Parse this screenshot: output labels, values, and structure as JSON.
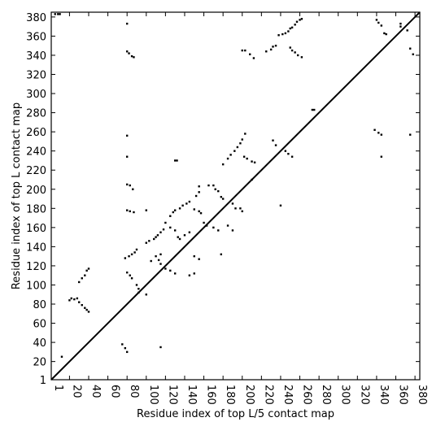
{
  "chart_data": {
    "type": "scatter",
    "xlabel": "Residue index of top L/5 contact map",
    "ylabel": "Residue index of top L contact map",
    "xlim": [
      1,
      385
    ],
    "ylim": [
      1,
      385
    ],
    "xticks": [
      1,
      20,
      40,
      60,
      80,
      100,
      120,
      140,
      160,
      180,
      200,
      220,
      240,
      260,
      280,
      300,
      320,
      340,
      360,
      380
    ],
    "yticks": [
      1,
      20,
      40,
      60,
      80,
      100,
      120,
      140,
      160,
      180,
      200,
      220,
      240,
      260,
      280,
      300,
      320,
      340,
      360,
      380
    ],
    "color": "#000000",
    "x": [
      5,
      8,
      10,
      80,
      80,
      82,
      85,
      87,
      200,
      203,
      208,
      212,
      225,
      230,
      232,
      235,
      238,
      242,
      245,
      248,
      250,
      252,
      255,
      257,
      260,
      262,
      250,
      252,
      255,
      258,
      262,
      340,
      342,
      345,
      348,
      350,
      365,
      365,
      372,
      375,
      378,
      273,
      275,
      180,
      185,
      188,
      192,
      195,
      198,
      200,
      203,
      202,
      205,
      210,
      213,
      232,
      235,
      80,
      80,
      80,
      83,
      86,
      80,
      83,
      87,
      100,
      130,
      132,
      120,
      125,
      128,
      130,
      135,
      138,
      142,
      145,
      152,
      155,
      155,
      165,
      170,
      172,
      175,
      178,
      180,
      150,
      155,
      157,
      198,
      200,
      108,
      110,
      112,
      115,
      118,
      20,
      22,
      28,
      33,
      36,
      38,
      40,
      30,
      78,
      82,
      85,
      88,
      90,
      100,
      103,
      12,
      75,
      78,
      80,
      115,
      90,
      92,
      92,
      100,
      80,
      83,
      85,
      25,
      30,
      33,
      36,
      38,
      40,
      105,
      110,
      113,
      115,
      120,
      125,
      130,
      115,
      125,
      130,
      133,
      135,
      145,
      150,
      150,
      155,
      140,
      145,
      160,
      163,
      170,
      175,
      178,
      190,
      193,
      190,
      245,
      248,
      252,
      240,
      338,
      342,
      345,
      345,
      375,
      210,
      185
    ],
    "y": [
      383,
      383,
      383,
      373,
      344,
      342,
      339,
      338,
      345,
      345,
      341,
      337,
      344,
      346,
      349,
      350,
      361,
      362,
      363,
      365,
      368,
      369,
      372,
      375,
      377,
      378,
      348,
      345,
      343,
      340,
      338,
      377,
      374,
      371,
      363,
      362,
      373,
      370,
      366,
      347,
      341,
      283,
      283,
      226,
      232,
      236,
      240,
      244,
      248,
      252,
      258,
      234,
      232,
      229,
      228,
      251,
      246,
      256,
      234,
      205,
      204,
      200,
      178,
      177,
      176,
      178,
      230,
      230,
      165,
      172,
      176,
      178,
      180,
      183,
      185,
      187,
      193,
      197,
      203,
      204,
      204,
      200,
      198,
      192,
      190,
      179,
      177,
      175,
      180,
      177,
      148,
      150,
      152,
      155,
      158,
      84,
      86,
      86,
      107,
      110,
      115,
      117,
      103,
      128,
      130,
      132,
      134,
      137,
      144,
      146,
      25,
      38,
      34,
      30,
      35,
      100,
      96,
      92,
      90,
      113,
      110,
      107,
      85,
      82,
      79,
      76,
      74,
      72,
      125,
      130,
      126,
      122,
      117,
      115,
      112,
      132,
      160,
      157,
      150,
      148,
      110,
      112,
      130,
      127,
      152,
      155,
      165,
      162,
      160,
      157,
      132,
      185,
      180,
      157,
      240,
      237,
      234,
      183,
      262,
      259,
      257,
      234,
      257,
      210,
      162
    ]
  }
}
